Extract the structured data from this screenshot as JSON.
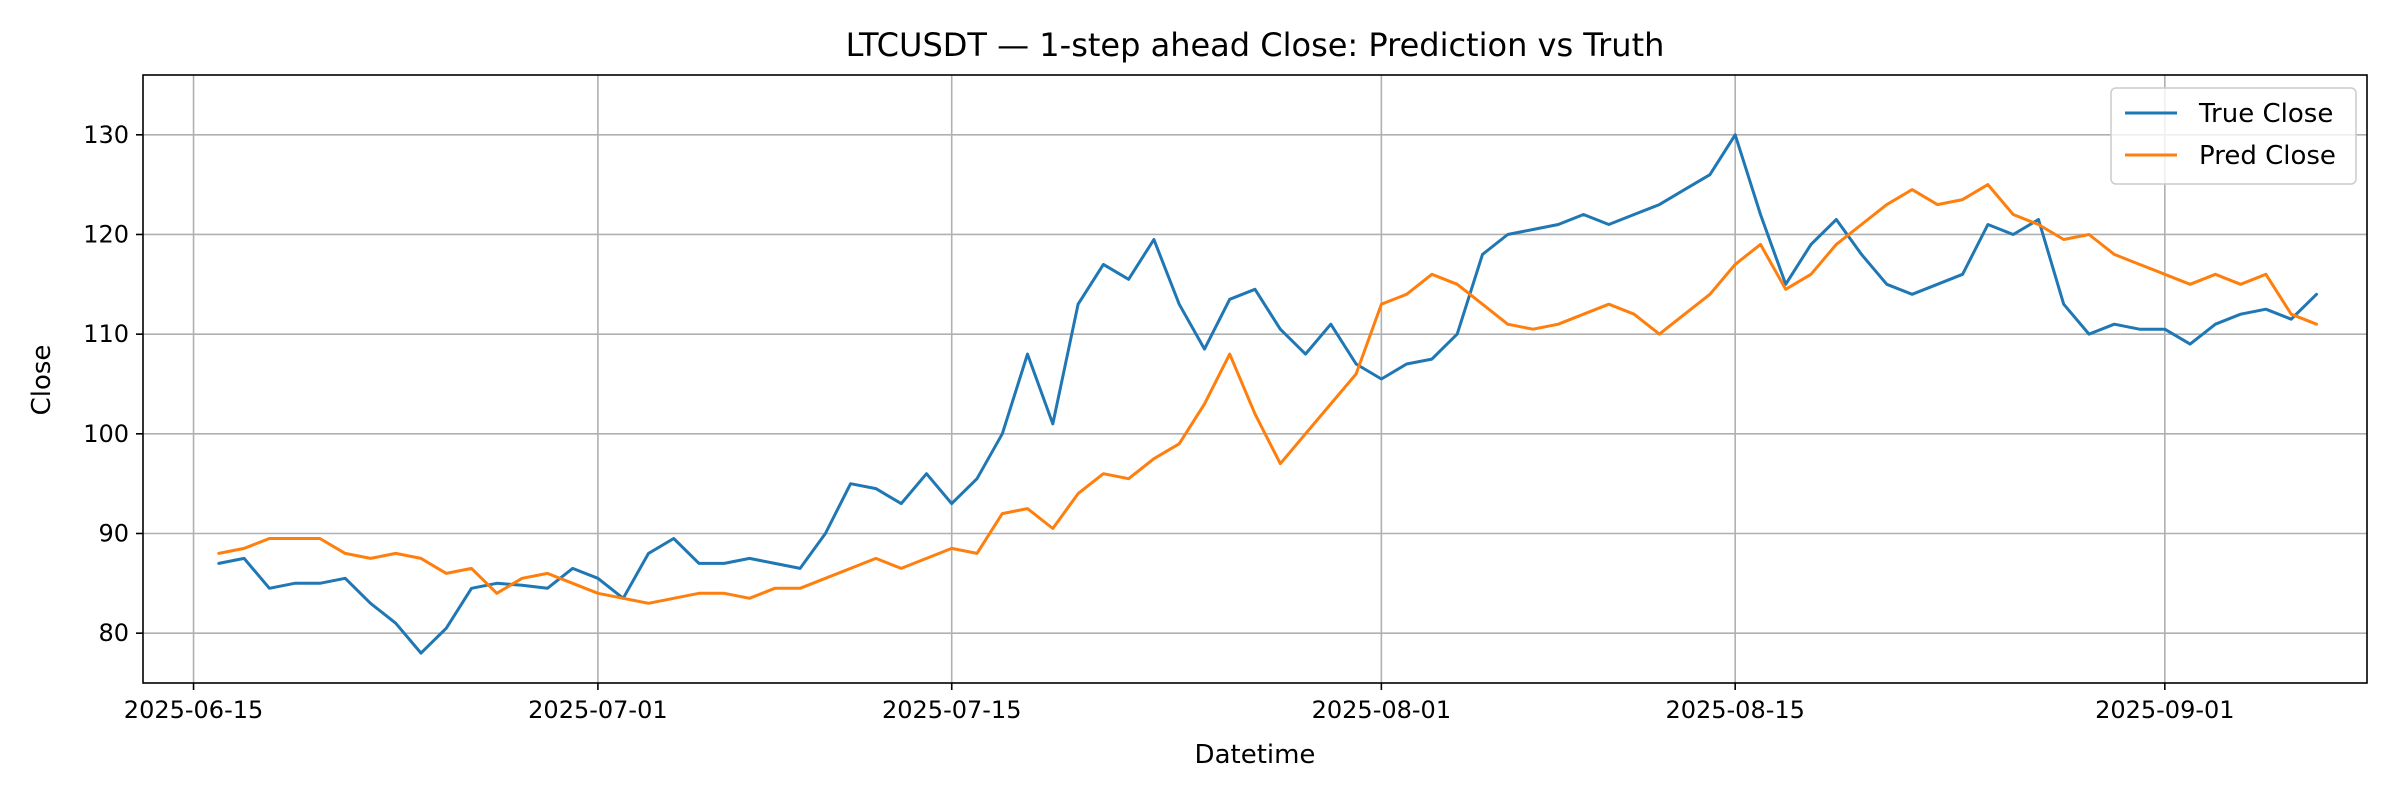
{
  "chart_data": {
    "type": "line",
    "title": "LTCUSDT — 1-step ahead Close: Prediction vs Truth",
    "xlabel": "Datetime",
    "ylabel": "Close",
    "xlim": [
      "2025-06-13",
      "2025-09-09"
    ],
    "ylim": [
      75,
      136
    ],
    "x_ticks": [
      "2025-06-15",
      "2025-07-01",
      "2025-07-15",
      "2025-08-01",
      "2025-08-15",
      "2025-09-01"
    ],
    "y_ticks": [
      80,
      90,
      100,
      110,
      120,
      130
    ],
    "grid": true,
    "legend_position": "top-right",
    "colors": {
      "True Close": "#1f77b4",
      "Pred Close": "#ff7f0e"
    },
    "x": [
      "2025-06-16",
      "2025-06-17",
      "2025-06-18",
      "2025-06-19",
      "2025-06-20",
      "2025-06-21",
      "2025-06-22",
      "2025-06-23",
      "2025-06-24",
      "2025-06-25",
      "2025-06-26",
      "2025-06-27",
      "2025-06-28",
      "2025-06-29",
      "2025-06-30",
      "2025-07-01",
      "2025-07-02",
      "2025-07-03",
      "2025-07-04",
      "2025-07-05",
      "2025-07-06",
      "2025-07-07",
      "2025-07-08",
      "2025-07-09",
      "2025-07-10",
      "2025-07-11",
      "2025-07-12",
      "2025-07-13",
      "2025-07-14",
      "2025-07-15",
      "2025-07-16",
      "2025-07-17",
      "2025-07-18",
      "2025-07-19",
      "2025-07-20",
      "2025-07-21",
      "2025-07-22",
      "2025-07-23",
      "2025-07-24",
      "2025-07-25",
      "2025-07-26",
      "2025-07-27",
      "2025-07-28",
      "2025-07-29",
      "2025-07-30",
      "2025-07-31",
      "2025-08-01",
      "2025-08-02",
      "2025-08-03",
      "2025-08-04",
      "2025-08-05",
      "2025-08-06",
      "2025-08-07",
      "2025-08-08",
      "2025-08-09",
      "2025-08-10",
      "2025-08-11",
      "2025-08-12",
      "2025-08-13",
      "2025-08-14",
      "2025-08-15",
      "2025-08-16",
      "2025-08-17",
      "2025-08-18",
      "2025-08-19",
      "2025-08-20",
      "2025-08-21",
      "2025-08-22",
      "2025-08-23",
      "2025-08-24",
      "2025-08-25",
      "2025-08-26",
      "2025-08-27",
      "2025-08-28",
      "2025-08-29",
      "2025-08-30",
      "2025-08-31",
      "2025-09-01",
      "2025-09-02",
      "2025-09-03",
      "2025-09-04",
      "2025-09-05",
      "2025-09-06",
      "2025-09-07"
    ],
    "series": [
      {
        "name": "True Close",
        "values": [
          87,
          87.5,
          84.5,
          85,
          85,
          85.5,
          83,
          81,
          78,
          80.5,
          84.5,
          85,
          84.8,
          84.5,
          86.5,
          85.5,
          83.5,
          88,
          89.5,
          87,
          87,
          87.5,
          87,
          86.5,
          90,
          95,
          94.5,
          93,
          96,
          93,
          95.5,
          100,
          108,
          101,
          113,
          117,
          115.5,
          119.5,
          113,
          108.5,
          113.5,
          114.5,
          110.5,
          108,
          111,
          107,
          105.5,
          107,
          107.5,
          110,
          118,
          120,
          120.5,
          121,
          122,
          121,
          122,
          123,
          124.5,
          126,
          130,
          122,
          115,
          119,
          121.5,
          118,
          115,
          114,
          115,
          116,
          121,
          120,
          121.5,
          113,
          110,
          111,
          110.5,
          110.5,
          109,
          111,
          112,
          112.5,
          111.5,
          114
        ]
      },
      {
        "name": "Pred Close",
        "values": [
          88,
          88.5,
          89.5,
          89.5,
          89.5,
          88,
          87.5,
          88,
          87.5,
          86,
          86.5,
          84,
          85.5,
          86,
          85,
          84,
          83.5,
          83,
          83.5,
          84,
          84,
          83.5,
          84.5,
          84.5,
          85.5,
          86.5,
          87.5,
          86.5,
          87.5,
          88.5,
          88,
          92,
          92.5,
          90.5,
          94,
          96,
          95.5,
          97.5,
          99,
          103,
          108,
          102,
          97,
          100,
          103,
          106,
          113,
          114,
          116,
          115,
          113,
          111,
          110.5,
          111,
          112,
          113,
          112,
          110,
          112,
          114,
          117,
          119,
          114.5,
          116,
          119,
          121,
          123,
          124.5,
          123,
          123.5,
          125,
          122,
          121,
          119.5,
          120,
          118,
          117,
          116,
          115,
          116,
          115,
          116,
          112,
          111
        ]
      }
    ]
  }
}
